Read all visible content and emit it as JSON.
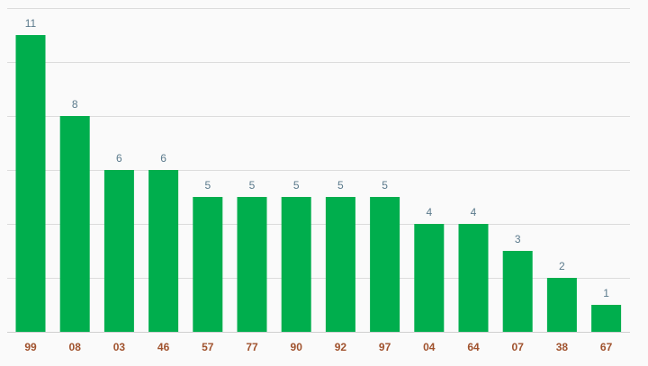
{
  "colors": {
    "bar": "#00ae4d",
    "data_label": "#5b7a8c",
    "tick_label": "#a0522d",
    "grid": "#dcdcdc",
    "background": "#fafafa"
  },
  "chart_data": {
    "type": "bar",
    "title": "",
    "xlabel": "",
    "ylabel": "",
    "categories": [
      "99",
      "08",
      "03",
      "46",
      "57",
      "77",
      "90",
      "92",
      "97",
      "04",
      "64",
      "07",
      "38",
      "67"
    ],
    "values": [
      11,
      8,
      6,
      6,
      5,
      5,
      5,
      5,
      5,
      4,
      4,
      3,
      2,
      1
    ],
    "ylim": [
      0,
      12
    ],
    "grid": true,
    "legend": "none"
  }
}
